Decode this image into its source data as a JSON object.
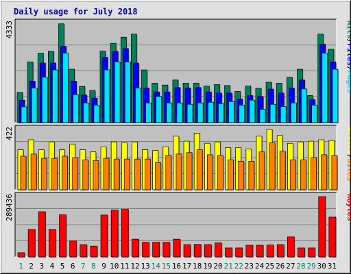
{
  "chart_data": {
    "title": "Daily usage for July 2018",
    "categories": [
      "1",
      "2",
      "3",
      "4",
      "5",
      "6",
      "7",
      "8",
      "9",
      "10",
      "11",
      "12",
      "13",
      "14",
      "15",
      "16",
      "17",
      "18",
      "19",
      "20",
      "21",
      "22",
      "23",
      "24",
      "25",
      "26",
      "27",
      "28",
      "29",
      "30",
      "31"
    ],
    "weekend_days": [
      1,
      7,
      8,
      14,
      15,
      21,
      22,
      28,
      29
    ],
    "colors": {
      "hits": "#00805c",
      "files": "#0000ff",
      "pages": "#00e0ff",
      "visits": "#ffff00",
      "sites": "#ff8000",
      "kbytes": "#ff0000",
      "weekday_label": "#000000",
      "weekend_label": "#00805c"
    },
    "panels": [
      {
        "type": "bar",
        "ymax_label": "4333",
        "ylim": [
          0,
          4333
        ],
        "right_labels": [
          {
            "text": "Pages",
            "color": "#00e0ff"
          },
          {
            "text": "Files",
            "color": "#0000ff"
          },
          {
            "text": "Hits",
            "color": "#00805c"
          }
        ],
        "series": [
          {
            "name": "Hits",
            "values": [
              1320,
              2650,
              3030,
              3110,
              4310,
              2330,
              1580,
              1400,
              3120,
              3460,
              3730,
              3860,
              2300,
              1720,
              1640,
              1860,
              1720,
              1720,
              1600,
              1660,
              1620,
              1360,
              1600,
              1500,
              1760,
              1720,
              1980,
              2330,
              1180,
              3860,
              3200
            ]
          },
          {
            "name": "Files",
            "values": [
              980,
              1810,
              2600,
              2600,
              3330,
              1810,
              1200,
              1070,
              2850,
              3110,
              3230,
              2600,
              1510,
              1340,
              1340,
              1530,
              1510,
              1530,
              1340,
              1290,
              1290,
              1030,
              1180,
              1140,
              1460,
              1290,
              1510,
              1860,
              1000,
              3420,
              2650
            ]
          },
          {
            "name": "Pages",
            "values": [
              690,
              1510,
              1980,
              2300,
              3030,
              1220,
              860,
              760,
              2300,
              2650,
              2650,
              1510,
              860,
              1140,
              860,
              860,
              800,
              860,
              890,
              830,
              920,
              760,
              980,
              580,
              800,
              700,
              860,
              1470,
              760,
              3030,
              2330
            ]
          }
        ]
      },
      {
        "type": "bar",
        "ymax_label": "422",
        "ylim": [
          0,
          422
        ],
        "right_labels": [
          {
            "text": "Sites",
            "color": "#ff8000"
          },
          {
            "text": "Visits",
            "color": "#ffff00"
          }
        ],
        "series": [
          {
            "name": "Visits",
            "values": [
              280,
              350,
              280,
              335,
              280,
              320,
              280,
              265,
              300,
              335,
              330,
              335,
              280,
              275,
              300,
              375,
              340,
              395,
              325,
              335,
              295,
              295,
              285,
              375,
              422,
              380,
              325,
              335,
              340,
              350,
              345
            ]
          },
          {
            "name": "Sites",
            "values": [
              235,
              250,
              220,
              220,
              235,
              225,
              210,
              205,
              220,
              215,
              215,
              215,
              215,
              190,
              240,
              250,
              260,
              280,
              245,
              240,
              210,
              200,
              200,
              265,
              330,
              270,
              210,
              210,
              225,
              245,
              240
            ]
          }
        ]
      },
      {
        "type": "bar",
        "ymax_label": "289436",
        "ylim": [
          0,
          289436
        ],
        "right_labels": [
          {
            "text": "KBytes",
            "color": "#ff0000"
          }
        ],
        "series": [
          {
            "name": "KBytes",
            "values": [
              20000,
              132000,
              217000,
              132000,
              202000,
              76000,
              59000,
              52000,
              201000,
              225000,
              228000,
              85000,
              70000,
              70000,
              70000,
              85000,
              59000,
              60000,
              59000,
              67000,
              43000,
              43000,
              56000,
              56000,
              57000,
              59000,
              96000,
              43000,
              43000,
              289436,
              191000
            ]
          }
        ]
      }
    ]
  }
}
